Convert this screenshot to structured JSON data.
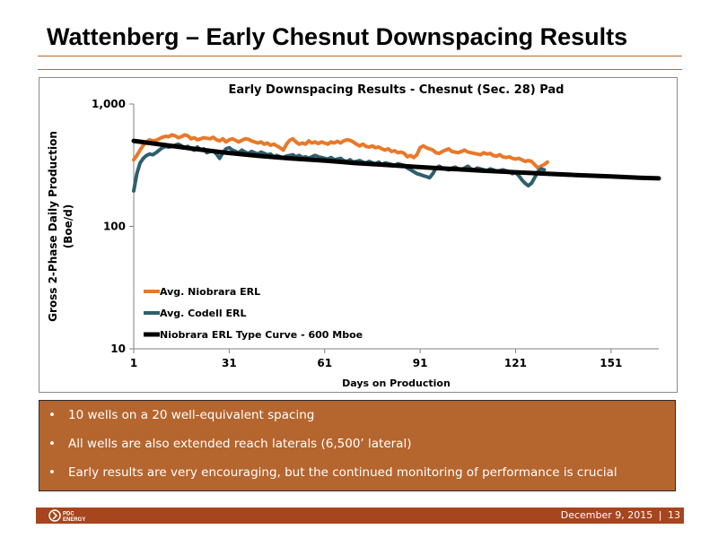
{
  "slide": {
    "title": "Wattenberg – Early Chesnut Downspacing Results",
    "bullets": [
      "10 wells on a 20 well-equivalent spacing",
      "All wells are also extended reach laterals (6,500’ lateral)",
      "Early results are very encouraging, but the continued monitoring of performance is crucial"
    ],
    "bullet_glyph": "•",
    "footer": {
      "date": "December 9, 2015",
      "separator": "|",
      "page": "13",
      "logo_text": [
        "PDC",
        "ENERGY"
      ]
    },
    "colors": {
      "accent": "#c0622b",
      "bullet_box": "#b5652e",
      "footer_bar": "#a6451e",
      "niobrara": "#e8792a",
      "codell": "#2f5e6e",
      "type_curve": "#000000"
    }
  },
  "chart_data": {
    "type": "line",
    "title": "Early Downspacing Results  - Chesnut  (Sec. 28) Pad",
    "xlabel": "Days on Production",
    "ylabel_lines": [
      "Gross 2-Phase Daily Production",
      "(Boe/d)"
    ],
    "yscale": "log",
    "ylim": [
      10,
      1000
    ],
    "xlim": [
      1,
      166
    ],
    "xticks": [
      1,
      31,
      61,
      91,
      121,
      151
    ],
    "yticks": [
      {
        "value": 10,
        "label": "10"
      },
      {
        "value": 100,
        "label": "100"
      },
      {
        "value": 1000,
        "label": "1,000"
      }
    ],
    "legend_position": "bottom-left",
    "series": [
      {
        "name": "Avg. Niobrara ERL",
        "color": "#e8792a",
        "points": [
          [
            1,
            350
          ],
          [
            2,
            380
          ],
          [
            3,
            420
          ],
          [
            4,
            460
          ],
          [
            5,
            490
          ],
          [
            6,
            510
          ],
          [
            7,
            500
          ],
          [
            8,
            505
          ],
          [
            9,
            520
          ],
          [
            10,
            535
          ],
          [
            11,
            545
          ],
          [
            12,
            540
          ],
          [
            13,
            560
          ],
          [
            14,
            550
          ],
          [
            15,
            530
          ],
          [
            16,
            540
          ],
          [
            17,
            560
          ],
          [
            18,
            550
          ],
          [
            19,
            520
          ],
          [
            20,
            530
          ],
          [
            21,
            510
          ],
          [
            22,
            520
          ],
          [
            23,
            530
          ],
          [
            24,
            525
          ],
          [
            25,
            520
          ],
          [
            26,
            535
          ],
          [
            27,
            510
          ],
          [
            28,
            500
          ],
          [
            29,
            520
          ],
          [
            30,
            490
          ],
          [
            31,
            510
          ],
          [
            32,
            520
          ],
          [
            33,
            505
          ],
          [
            34,
            490
          ],
          [
            35,
            505
          ],
          [
            36,
            520
          ],
          [
            37,
            515
          ],
          [
            38,
            500
          ],
          [
            39,
            490
          ],
          [
            40,
            480
          ],
          [
            41,
            490
          ],
          [
            42,
            470
          ],
          [
            43,
            480
          ],
          [
            44,
            460
          ],
          [
            45,
            470
          ],
          [
            46,
            455
          ],
          [
            47,
            440
          ],
          [
            48,
            420
          ],
          [
            49,
            470
          ],
          [
            50,
            505
          ],
          [
            51,
            520
          ],
          [
            52,
            490
          ],
          [
            53,
            470
          ],
          [
            54,
            480
          ],
          [
            55,
            470
          ],
          [
            56,
            500
          ],
          [
            57,
            480
          ],
          [
            58,
            490
          ],
          [
            59,
            475
          ],
          [
            60,
            490
          ],
          [
            61,
            480
          ],
          [
            62,
            470
          ],
          [
            63,
            490
          ],
          [
            64,
            480
          ],
          [
            65,
            495
          ],
          [
            66,
            480
          ],
          [
            67,
            500
          ],
          [
            68,
            510
          ],
          [
            69,
            505
          ],
          [
            70,
            490
          ],
          [
            71,
            470
          ],
          [
            72,
            455
          ],
          [
            73,
            470
          ],
          [
            74,
            450
          ],
          [
            75,
            445
          ],
          [
            76,
            455
          ],
          [
            77,
            440
          ],
          [
            78,
            445
          ],
          [
            79,
            430
          ],
          [
            80,
            420
          ],
          [
            81,
            430
          ],
          [
            82,
            410
          ],
          [
            83,
            415
          ],
          [
            84,
            400
          ],
          [
            85,
            405
          ],
          [
            86,
            395
          ],
          [
            87,
            370
          ],
          [
            88,
            380
          ],
          [
            89,
            365
          ],
          [
            90,
            385
          ],
          [
            91,
            440
          ],
          [
            92,
            455
          ],
          [
            93,
            440
          ],
          [
            94,
            430
          ],
          [
            95,
            420
          ],
          [
            96,
            400
          ],
          [
            97,
            395
          ],
          [
            98,
            410
          ],
          [
            99,
            420
          ],
          [
            100,
            430
          ],
          [
            101,
            410
          ],
          [
            102,
            405
          ],
          [
            103,
            400
          ],
          [
            104,
            410
          ],
          [
            105,
            420
          ],
          [
            106,
            405
          ],
          [
            107,
            400
          ],
          [
            108,
            395
          ],
          [
            109,
            390
          ],
          [
            110,
            385
          ],
          [
            111,
            400
          ],
          [
            112,
            390
          ],
          [
            113,
            395
          ],
          [
            114,
            380
          ],
          [
            115,
            375
          ],
          [
            116,
            385
          ],
          [
            117,
            370
          ],
          [
            118,
            365
          ],
          [
            119,
            370
          ],
          [
            120,
            360
          ],
          [
            121,
            355
          ],
          [
            122,
            360
          ],
          [
            123,
            350
          ],
          [
            124,
            340
          ],
          [
            125,
            345
          ],
          [
            126,
            340
          ],
          [
            127,
            320
          ],
          [
            128,
            300
          ],
          [
            129,
            310
          ],
          [
            130,
            320
          ],
          [
            131,
            335
          ]
        ]
      },
      {
        "name": "Avg. Codell ERL",
        "color": "#2f5e6e",
        "points": [
          [
            1,
            195
          ],
          [
            2,
            270
          ],
          [
            3,
            330
          ],
          [
            4,
            360
          ],
          [
            5,
            380
          ],
          [
            6,
            390
          ],
          [
            7,
            385
          ],
          [
            8,
            400
          ],
          [
            9,
            420
          ],
          [
            10,
            440
          ],
          [
            11,
            450
          ],
          [
            12,
            445
          ],
          [
            13,
            450
          ],
          [
            14,
            460
          ],
          [
            15,
            470
          ],
          [
            16,
            455
          ],
          [
            17,
            440
          ],
          [
            18,
            450
          ],
          [
            19,
            430
          ],
          [
            20,
            420
          ],
          [
            21,
            445
          ],
          [
            22,
            420
          ],
          [
            23,
            430
          ],
          [
            24,
            400
          ],
          [
            25,
            410
          ],
          [
            26,
            415
          ],
          [
            27,
            390
          ],
          [
            28,
            360
          ],
          [
            29,
            400
          ],
          [
            30,
            430
          ],
          [
            31,
            440
          ],
          [
            32,
            420
          ],
          [
            33,
            410
          ],
          [
            34,
            400
          ],
          [
            35,
            420
          ],
          [
            36,
            405
          ],
          [
            37,
            395
          ],
          [
            38,
            410
          ],
          [
            39,
            400
          ],
          [
            40,
            390
          ],
          [
            41,
            405
          ],
          [
            42,
            395
          ],
          [
            43,
            385
          ],
          [
            44,
            390
          ],
          [
            45,
            370
          ],
          [
            46,
            380
          ],
          [
            47,
            370
          ],
          [
            48,
            365
          ],
          [
            49,
            375
          ],
          [
            50,
            380
          ],
          [
            51,
            385
          ],
          [
            52,
            370
          ],
          [
            53,
            380
          ],
          [
            54,
            365
          ],
          [
            55,
            370
          ],
          [
            56,
            360
          ],
          [
            57,
            370
          ],
          [
            58,
            380
          ],
          [
            59,
            370
          ],
          [
            60,
            365
          ],
          [
            61,
            360
          ],
          [
            62,
            355
          ],
          [
            63,
            365
          ],
          [
            64,
            350
          ],
          [
            65,
            355
          ],
          [
            66,
            360
          ],
          [
            67,
            345
          ],
          [
            68,
            340
          ],
          [
            69,
            350
          ],
          [
            70,
            335
          ],
          [
            71,
            340
          ],
          [
            72,
            345
          ],
          [
            73,
            335
          ],
          [
            74,
            330
          ],
          [
            75,
            340
          ],
          [
            76,
            330
          ],
          [
            77,
            325
          ],
          [
            78,
            335
          ],
          [
            79,
            320
          ],
          [
            80,
            330
          ],
          [
            81,
            325
          ],
          [
            82,
            320
          ],
          [
            83,
            315
          ],
          [
            84,
            325
          ],
          [
            85,
            320
          ],
          [
            86,
            315
          ],
          [
            87,
            300
          ],
          [
            88,
            290
          ],
          [
            89,
            280
          ],
          [
            90,
            270
          ],
          [
            91,
            265
          ],
          [
            92,
            260
          ],
          [
            93,
            255
          ],
          [
            94,
            250
          ],
          [
            95,
            270
          ],
          [
            96,
            300
          ],
          [
            97,
            310
          ],
          [
            98,
            300
          ],
          [
            99,
            295
          ],
          [
            100,
            290
          ],
          [
            101,
            300
          ],
          [
            102,
            305
          ],
          [
            103,
            295
          ],
          [
            104,
            290
          ],
          [
            105,
            300
          ],
          [
            106,
            310
          ],
          [
            107,
            295
          ],
          [
            108,
            290
          ],
          [
            109,
            300
          ],
          [
            110,
            295
          ],
          [
            111,
            290
          ],
          [
            112,
            285
          ],
          [
            113,
            295
          ],
          [
            114,
            290
          ],
          [
            115,
            280
          ],
          [
            116,
            285
          ],
          [
            117,
            290
          ],
          [
            118,
            285
          ],
          [
            119,
            280
          ],
          [
            120,
            270
          ],
          [
            121,
            275
          ],
          [
            122,
            260
          ],
          [
            123,
            240
          ],
          [
            124,
            225
          ],
          [
            125,
            215
          ],
          [
            126,
            225
          ],
          [
            127,
            250
          ],
          [
            128,
            280
          ],
          [
            129,
            295
          ],
          [
            130,
            290
          ]
        ]
      },
      {
        "name": "Niobrara ERL Type Curve - 600 Mboe",
        "color": "#000000",
        "points": [
          [
            1,
            500
          ],
          [
            10,
            465
          ],
          [
            20,
            430
          ],
          [
            30,
            400
          ],
          [
            40,
            378
          ],
          [
            50,
            360
          ],
          [
            61,
            345
          ],
          [
            70,
            330
          ],
          [
            80,
            318
          ],
          [
            91,
            305
          ],
          [
            100,
            296
          ],
          [
            110,
            286
          ],
          [
            121,
            277
          ],
          [
            130,
            270
          ],
          [
            140,
            263
          ],
          [
            151,
            256
          ],
          [
            160,
            250
          ],
          [
            166,
            247
          ]
        ]
      }
    ]
  }
}
